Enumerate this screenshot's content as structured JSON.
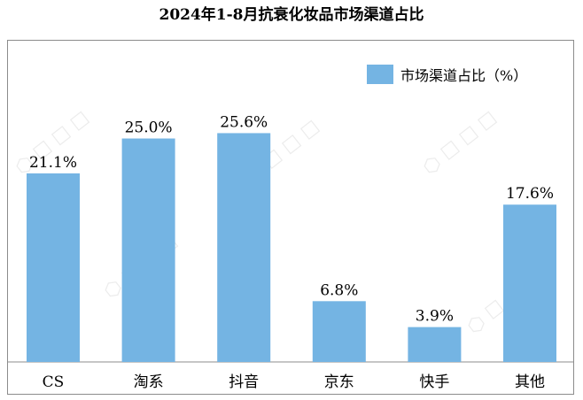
{
  "chart_data": {
    "type": "bar",
    "title": "2024年1-8月抗衰化妆品市场渠道占比",
    "categories": [
      "CS",
      "淘系",
      "抖音",
      "京东",
      "快手",
      "其他"
    ],
    "series": [
      {
        "name": "市场渠道占比（%）",
        "values": [
          21.1,
          25.0,
          25.6,
          6.8,
          3.9,
          17.6
        ],
        "labels": [
          "21.1%",
          "25.0%",
          "25.6%",
          "6.8%",
          "3.9%",
          "17.6%"
        ],
        "color": "#74b4e3"
      }
    ],
    "ylim": [
      0,
      30
    ],
    "grid": false,
    "legend": "top-right"
  }
}
